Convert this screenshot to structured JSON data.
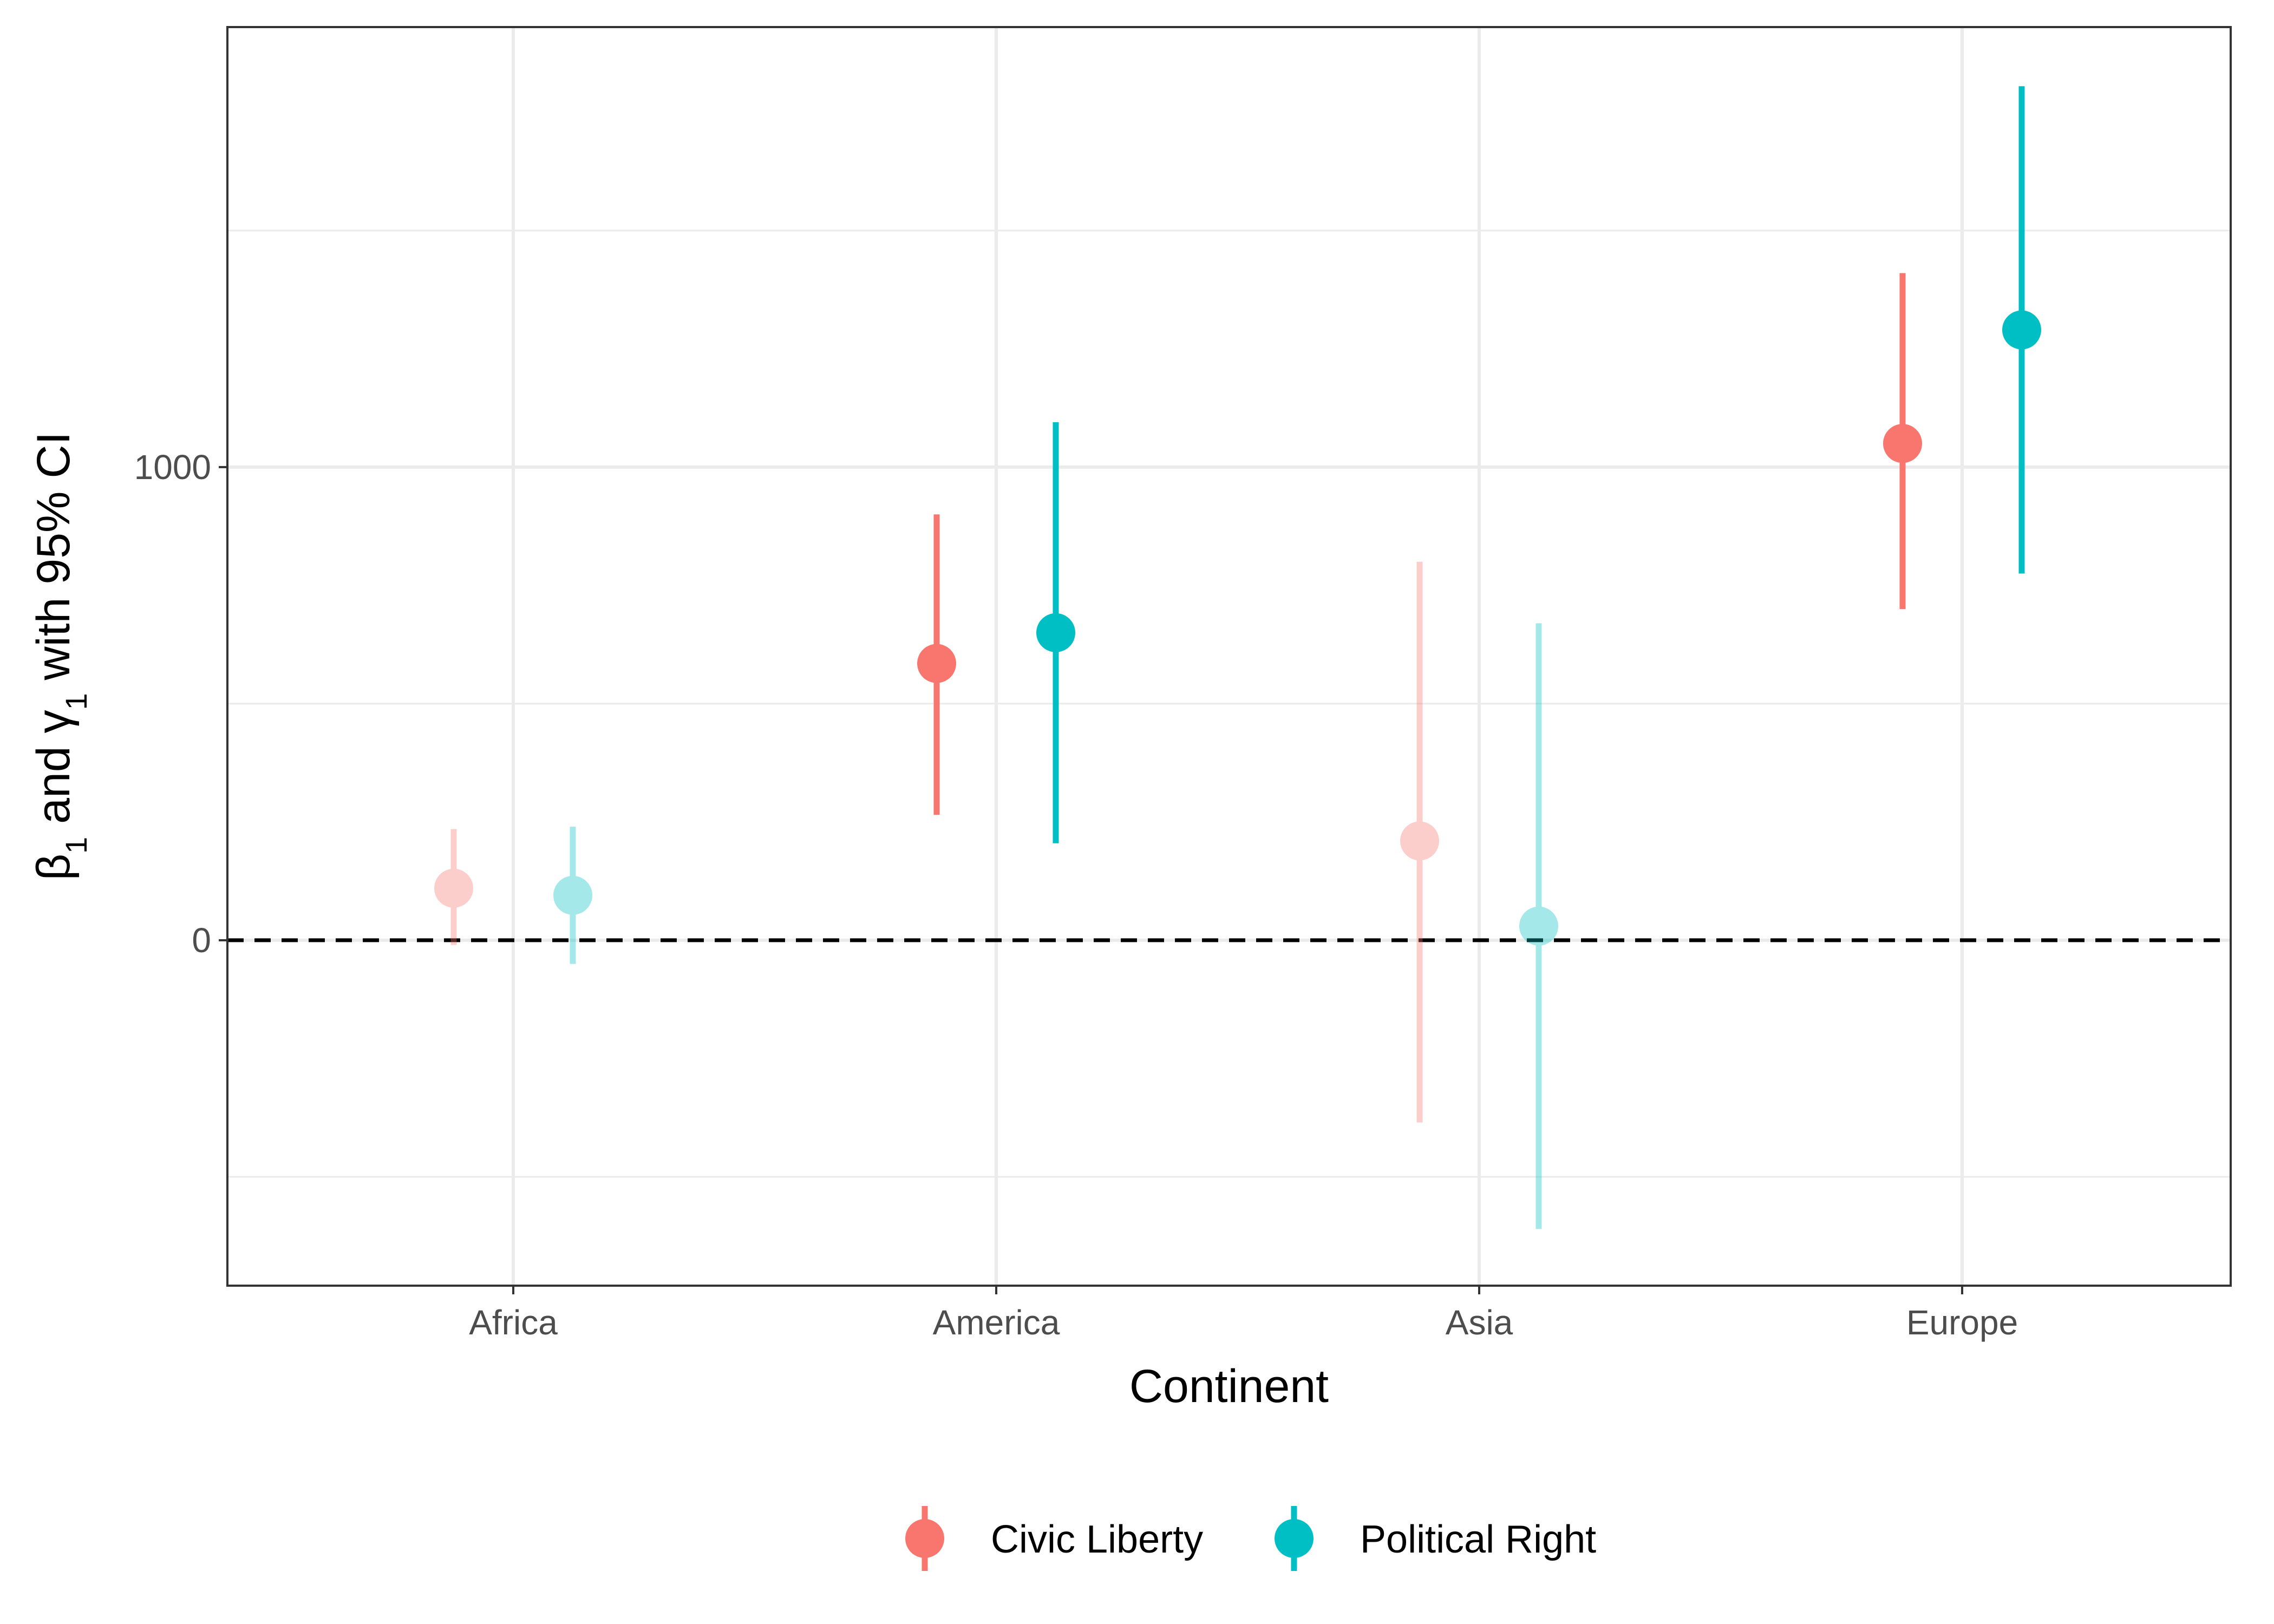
{
  "chart_data": {
    "type": "scatter",
    "subtype": "point-range",
    "xlabel": "Continent",
    "ylabel": {
      "parts": [
        {
          "text": "β",
          "sub": "1"
        },
        {
          "text": " and "
        },
        {
          "text": "γ",
          "sub": "1"
        },
        {
          "text": " with 95% CI"
        }
      ]
    },
    "categories": [
      "Africa",
      "America",
      "Asia",
      "Europe"
    ],
    "ylim": [
      -730,
      1930
    ],
    "yticks": [
      0,
      1000
    ],
    "ytick_labels": [
      "0",
      "1000"
    ],
    "minor_yticks": [
      -500,
      500,
      1500
    ],
    "reference_line": {
      "y": 0,
      "style": "dashed"
    },
    "grid": true,
    "legend": {
      "position": "bottom"
    },
    "series": [
      {
        "name": "Civic Liberty",
        "color": "#F8766D",
        "points": [
          {
            "category": "Africa",
            "y": 110,
            "low": -10,
            "high": 235,
            "faded": true
          },
          {
            "category": "America",
            "y": 585,
            "low": 265,
            "high": 900,
            "faded": false
          },
          {
            "category": "Asia",
            "y": 210,
            "low": -385,
            "high": 800,
            "faded": true
          },
          {
            "category": "Europe",
            "y": 1050,
            "low": 700,
            "high": 1410,
            "faded": false
          }
        ]
      },
      {
        "name": "Political Right",
        "color": "#00BFC4",
        "points": [
          {
            "category": "Africa",
            "y": 95,
            "low": -50,
            "high": 240,
            "faded": true
          },
          {
            "category": "America",
            "y": 650,
            "low": 205,
            "high": 1095,
            "faded": false
          },
          {
            "category": "Asia",
            "y": 30,
            "low": -610,
            "high": 670,
            "faded": true
          },
          {
            "category": "Europe",
            "y": 1290,
            "low": 775,
            "high": 1805,
            "faded": false
          }
        ]
      }
    ]
  }
}
